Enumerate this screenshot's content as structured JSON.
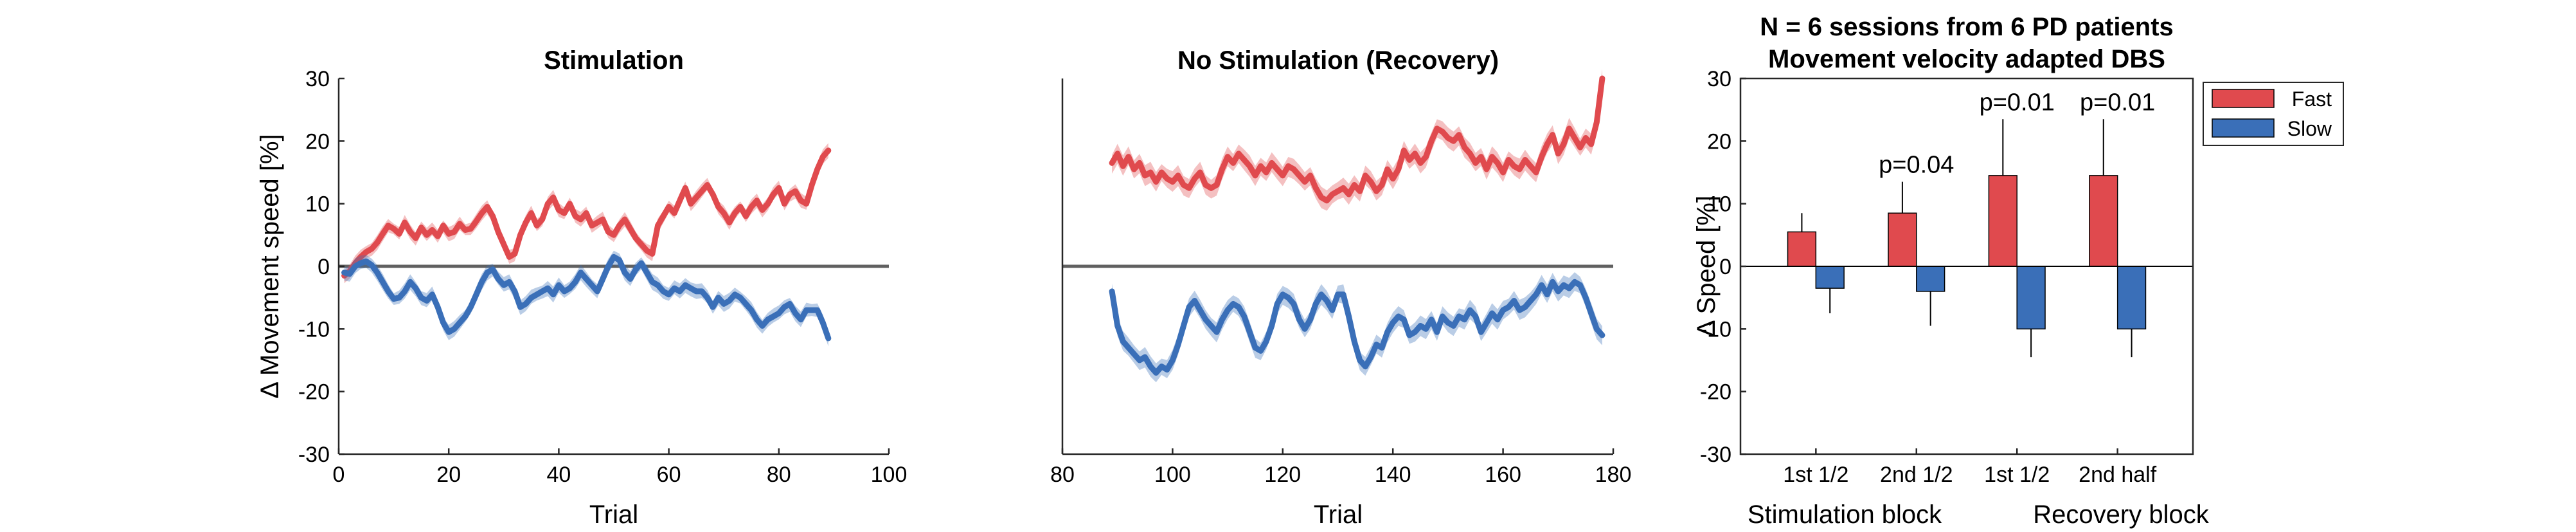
{
  "chart_data": [
    {
      "type": "line",
      "title": "Stimulation",
      "xlabel": "Trial",
      "ylabel": "Δ Movement speed [%]",
      "xlim": [
        0,
        100
      ],
      "ylim": [
        -30,
        30
      ],
      "x_ticks": [
        0,
        20,
        40,
        60,
        80,
        100
      ],
      "y_ticks": [
        -30,
        -20,
        -10,
        0,
        10,
        20,
        30
      ],
      "zero_line": true,
      "grid": false,
      "x_start": 1,
      "series": [
        {
          "color": "#e04a4e",
          "values": [
            -1.5,
            -0.8,
            0.5,
            1.5,
            2.3,
            2.8,
            3.8,
            5.2,
            6.5,
            6.0,
            5.2,
            7.0,
            5.5,
            4.5,
            6.2,
            5.0,
            5.8,
            4.8,
            6.5,
            5.2,
            5.5,
            6.8,
            5.8,
            6.0,
            7.2,
            8.5,
            9.5,
            8.0,
            5.5,
            3.5,
            1.5,
            2.0,
            5.0,
            7.0,
            8.5,
            6.5,
            7.5,
            10.0,
            11.0,
            9.0,
            8.5,
            10.0,
            8.0,
            7.5,
            8.5,
            6.5,
            7.0,
            7.5,
            5.5,
            5.0,
            6.5,
            7.5,
            6.0,
            4.5,
            3.5,
            2.5,
            2.0,
            6.5,
            8.0,
            9.5,
            8.5,
            10.5,
            12.5,
            10.0,
            11.0,
            12.0,
            13.0,
            11.5,
            9.5,
            8.5,
            7.0,
            8.5,
            9.5,
            8.0,
            9.5,
            10.5,
            9.0,
            10.0,
            11.5,
            12.5,
            10.0,
            11.5,
            12.0,
            10.5,
            10.0,
            13.0,
            15.5,
            17.5,
            18.5
          ]
        },
        {
          "color": "#3a6fb8",
          "values": [
            -1.0,
            -1.2,
            0.0,
            0.5,
            0.8,
            0.2,
            -1.0,
            -2.5,
            -4.0,
            -5.2,
            -5.0,
            -4.0,
            -2.5,
            -3.5,
            -5.0,
            -5.5,
            -4.5,
            -6.5,
            -9.0,
            -10.5,
            -10.0,
            -9.0,
            -8.0,
            -6.5,
            -4.5,
            -2.5,
            -1.0,
            -0.5,
            -2.0,
            -3.0,
            -2.5,
            -4.0,
            -6.5,
            -6.0,
            -5.0,
            -4.5,
            -4.0,
            -3.5,
            -4.5,
            -3.0,
            -4.0,
            -3.5,
            -2.5,
            -1.0,
            -2.0,
            -3.0,
            -4.0,
            -2.0,
            0.0,
            1.5,
            1.0,
            -1.0,
            -2.0,
            -0.5,
            0.5,
            -1.0,
            -2.5,
            -3.0,
            -4.0,
            -4.5,
            -3.5,
            -4.0,
            -3.0,
            -3.5,
            -4.0,
            -4.0,
            -5.0,
            -6.5,
            -5.0,
            -6.0,
            -5.5,
            -4.5,
            -5.0,
            -6.0,
            -7.0,
            -8.5,
            -9.5,
            -8.5,
            -8.0,
            -7.5,
            -6.5,
            -6.0,
            -7.5,
            -8.5,
            -7.0,
            -7.0,
            -7.0,
            -9.0,
            -11.5
          ]
        }
      ]
    },
    {
      "type": "line",
      "title": "No Stimulation (Recovery)",
      "xlabel": "Trial",
      "ylabel": "",
      "xlim": [
        80,
        180
      ],
      "ylim": [
        -30,
        30
      ],
      "x_ticks": [
        80,
        100,
        120,
        140,
        160,
        180
      ],
      "zero_line": true,
      "grid": false,
      "x_start": 89,
      "series": [
        {
          "color": "#e04a4e",
          "values": [
            16.5,
            18.0,
            16.0,
            17.5,
            15.5,
            16.5,
            14.5,
            15.0,
            13.5,
            15.0,
            14.0,
            13.5,
            14.5,
            13.0,
            12.5,
            14.0,
            15.0,
            13.0,
            12.5,
            13.0,
            15.5,
            17.5,
            16.5,
            18.0,
            17.0,
            16.0,
            14.5,
            16.0,
            15.0,
            16.5,
            15.5,
            14.5,
            16.0,
            15.5,
            14.5,
            13.5,
            14.5,
            12.5,
            11.0,
            10.5,
            11.5,
            12.0,
            12.5,
            11.5,
            13.0,
            12.0,
            14.5,
            13.5,
            12.0,
            13.0,
            15.5,
            14.0,
            15.5,
            18.5,
            17.0,
            18.0,
            16.5,
            17.5,
            20.0,
            22.0,
            21.5,
            20.5,
            20.0,
            21.0,
            19.0,
            18.0,
            16.5,
            17.5,
            15.5,
            17.5,
            16.5,
            15.0,
            17.0,
            16.0,
            15.5,
            17.0,
            16.0,
            15.0,
            17.5,
            19.5,
            21.0,
            18.0,
            19.5,
            22.0,
            20.5,
            19.0,
            20.5,
            19.5,
            23.0,
            30.0
          ]
        },
        {
          "color": "#3a6fb8",
          "values": [
            -4.0,
            -9.5,
            -12.0,
            -13.0,
            -14.0,
            -15.0,
            -14.5,
            -16.0,
            -17.0,
            -16.0,
            -16.5,
            -15.0,
            -12.5,
            -9.5,
            -6.5,
            -5.5,
            -7.0,
            -8.5,
            -9.5,
            -10.5,
            -8.5,
            -7.0,
            -6.0,
            -6.5,
            -8.0,
            -10.5,
            -13.0,
            -13.5,
            -12.0,
            -9.5,
            -6.0,
            -4.5,
            -5.0,
            -6.0,
            -8.5,
            -10.0,
            -8.5,
            -6.0,
            -4.5,
            -5.5,
            -7.0,
            -4.5,
            -4.5,
            -8.0,
            -12.0,
            -15.0,
            -16.0,
            -14.5,
            -12.5,
            -13.0,
            -10.5,
            -9.0,
            -8.0,
            -8.5,
            -11.0,
            -10.5,
            -9.5,
            -10.0,
            -8.5,
            -10.5,
            -8.0,
            -9.0,
            -9.5,
            -8.0,
            -8.5,
            -7.0,
            -8.0,
            -10.5,
            -9.0,
            -7.5,
            -8.5,
            -7.0,
            -6.5,
            -5.5,
            -7.0,
            -6.5,
            -5.5,
            -4.5,
            -3.0,
            -4.5,
            -2.5,
            -4.0,
            -3.0,
            -3.5,
            -2.5,
            -3.0,
            -5.0,
            -7.5,
            -10.0,
            -11.0
          ]
        }
      ]
    },
    {
      "type": "bar",
      "title": "N = 6 sessions from 6 PD patients",
      "subtitle": "Movement velocity adapted DBS",
      "xlabel": "",
      "ylabel": "Δ Speed [%]",
      "ylim": [
        -30,
        30
      ],
      "y_ticks": [
        -30,
        -20,
        -10,
        0,
        10,
        20,
        30
      ],
      "grid": false,
      "legend_placement": "outside top-right",
      "categories": [
        "1st 1/2",
        "2nd 1/2",
        "1st 1/2",
        "2nd half"
      ],
      "group_labels": [
        "Stimulation block",
        "Recovery block"
      ],
      "annotations": [
        "",
        "p=0.04",
        "p=0.01",
        "p=0.01"
      ],
      "series": [
        {
          "name": "Fast",
          "color": "#e04a4e",
          "values": [
            5.5,
            8.5,
            14.5,
            14.5
          ],
          "errors": [
            3.0,
            5.0,
            9.0,
            9.0
          ]
        },
        {
          "name": "Slow",
          "color": "#3a6fb8",
          "values": [
            -3.5,
            -4.0,
            -10.0,
            -10.0
          ],
          "errors": [
            4.0,
            5.5,
            4.5,
            4.5
          ]
        }
      ]
    }
  ]
}
